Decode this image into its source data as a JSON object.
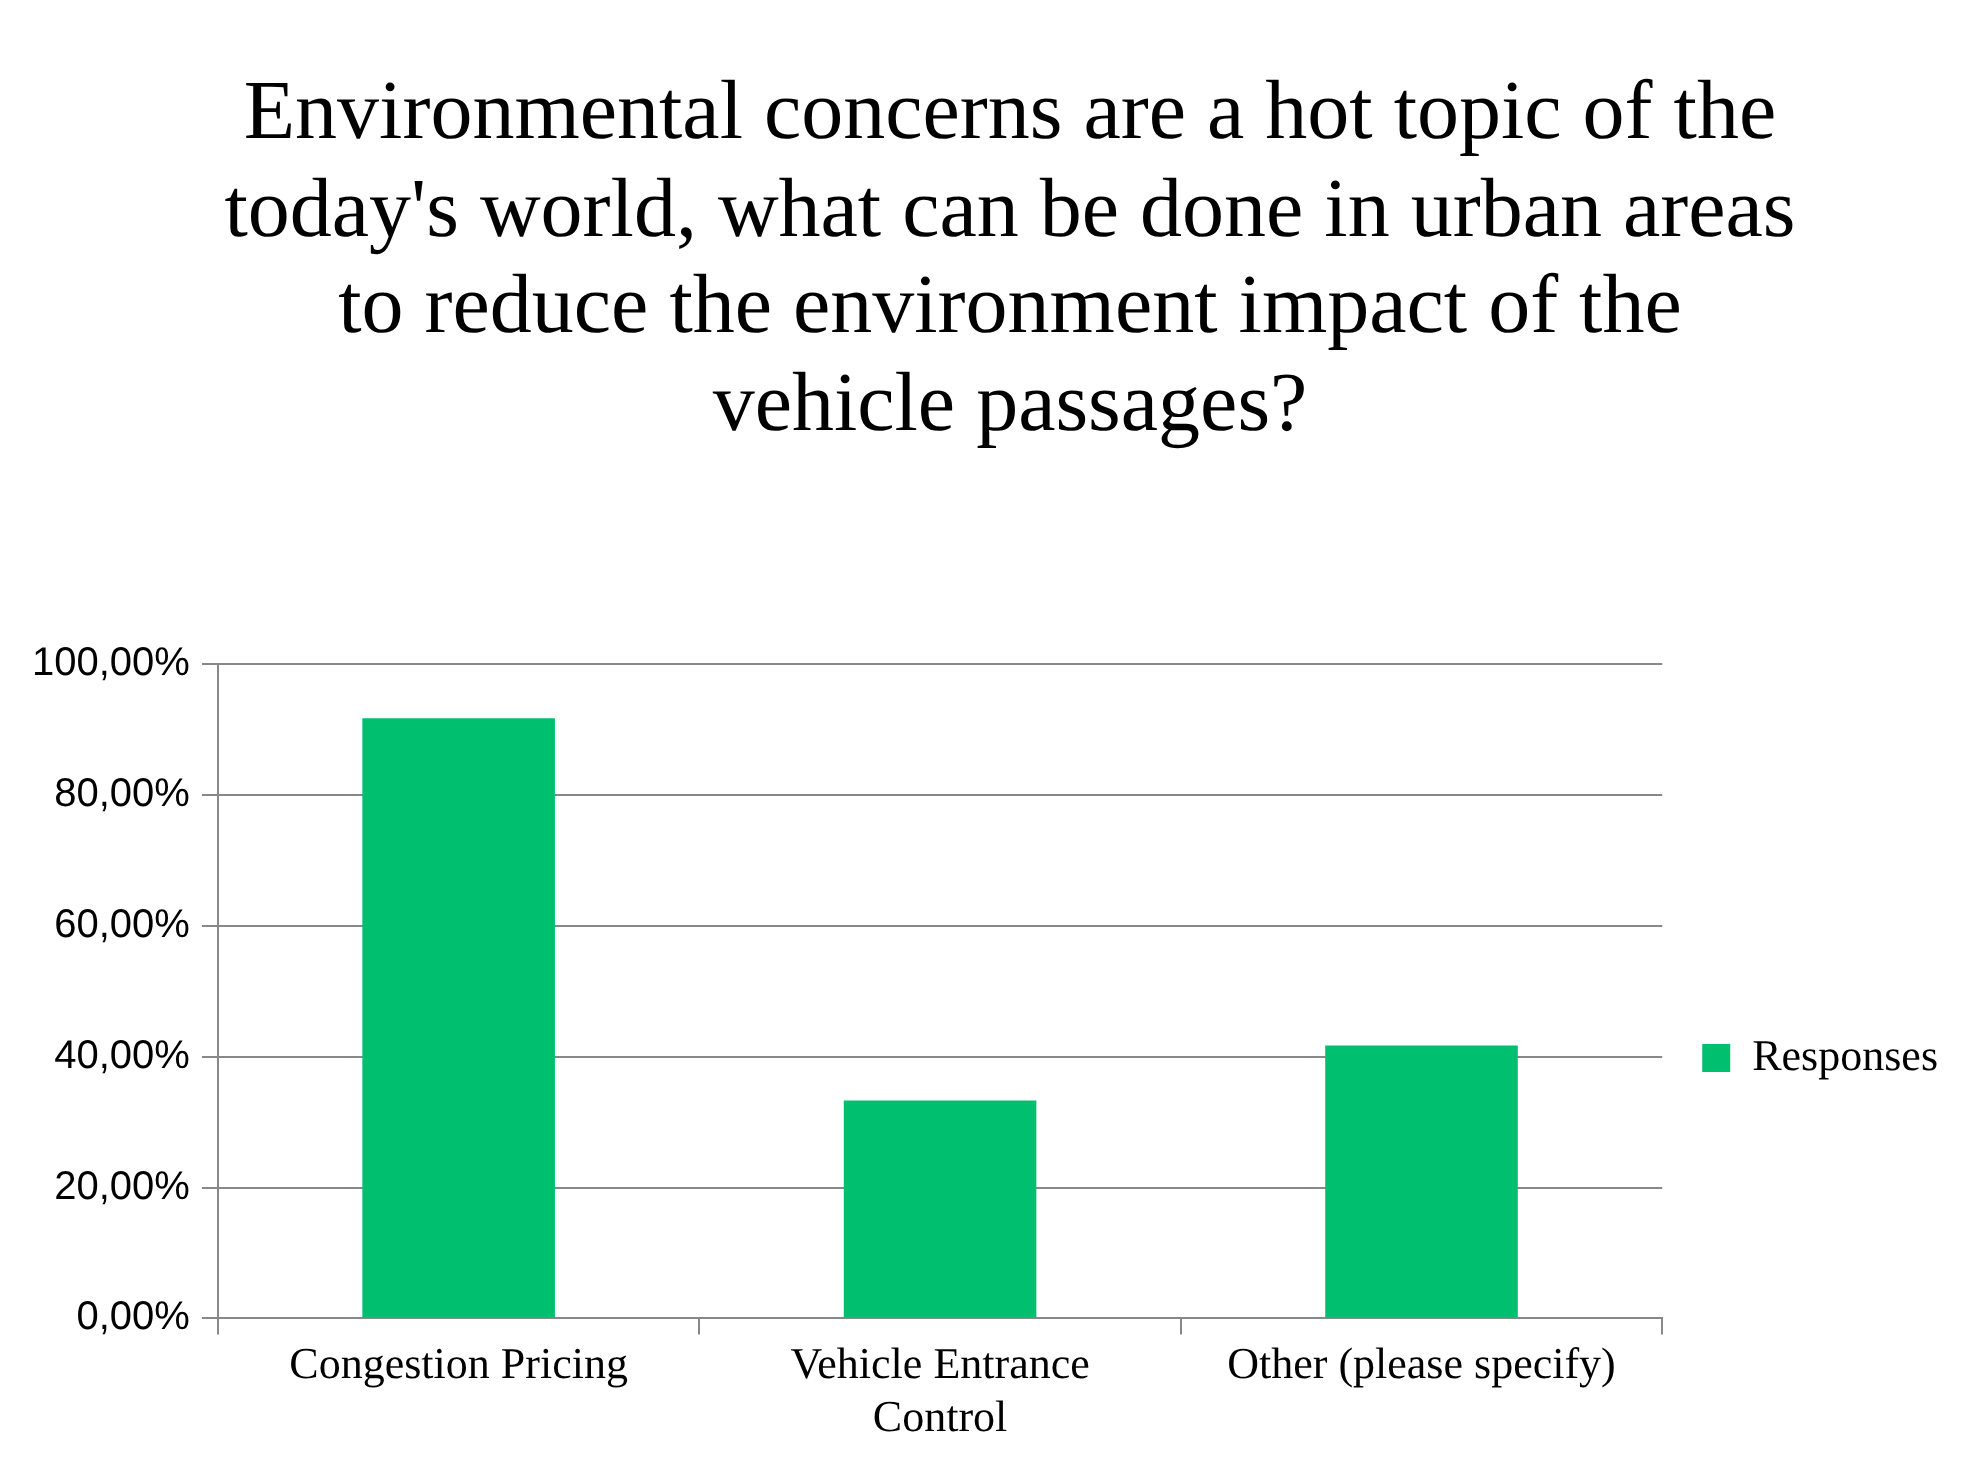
{
  "chart_data": {
    "type": "bar",
    "title": "Environmental concerns are a hot topic of the today's world, what can be done in urban areas to reduce the environment impact of the vehicle passages?",
    "categories": [
      "Congestion Pricing",
      "Vehicle Entrance Control",
      "Other (please specify)"
    ],
    "series": [
      {
        "name": "Responses",
        "color": "#00bf6f",
        "values": [
          91.7,
          33.3,
          41.7
        ]
      }
    ],
    "ylim": [
      0,
      100
    ],
    "yticks": [
      {
        "value": 0,
        "label": "0,00%"
      },
      {
        "value": 20,
        "label": "20,00%"
      },
      {
        "value": 40,
        "label": "40,00%"
      },
      {
        "value": 60,
        "label": "60,00%"
      },
      {
        "value": 80,
        "label": "80,00%"
      },
      {
        "value": 100,
        "label": "100,00%"
      }
    ],
    "grid": "y",
    "legend": "right"
  }
}
